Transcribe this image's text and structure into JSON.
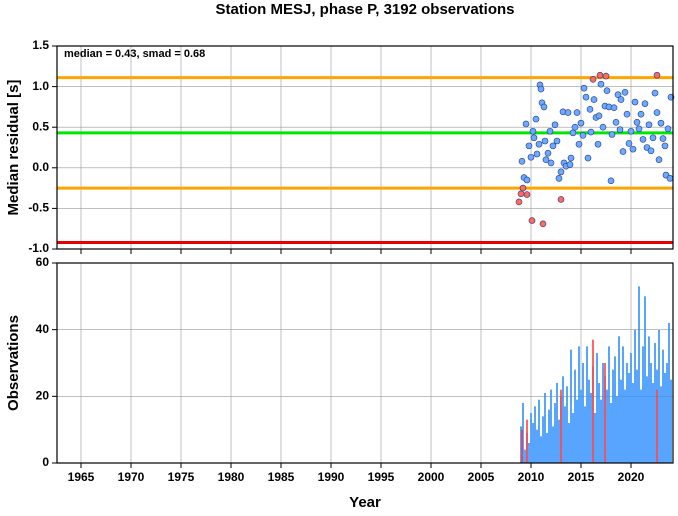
{
  "chart_data": [
    {
      "type": "scatter",
      "title": "Station MESJ, phase P, 3192 observations",
      "ylabel": "Median residual [s]",
      "annotation": "median = 0.43, smad = 0.68",
      "xlim": [
        1962.6,
        2024.2
      ],
      "xticks": [
        1965,
        1970,
        1975,
        1980,
        1985,
        1990,
        1995,
        2000,
        2005,
        2010,
        2015,
        2020
      ],
      "ylim": [
        -1.0,
        1.5
      ],
      "yticks": [
        {
          "value": -1.0,
          "label": "-1.0"
        },
        -0.5,
        {
          "value": 0.0,
          "label": "0.0"
        },
        0.5,
        {
          "value": 1.0,
          "label": "1.0"
        },
        1.5
      ],
      "grid": true,
      "hlines": [
        {
          "value": 1.11,
          "color": "#ffa500"
        },
        {
          "value": 0.43,
          "color": "#00e600"
        },
        {
          "value": -0.25,
          "color": "#ffa500"
        },
        {
          "value": -0.92,
          "color": "#e60000"
        }
      ],
      "series": [
        {
          "color": "#6fa8ff",
          "x": [
            2009.1,
            2009.3,
            2009.5,
            2009.6,
            2009.8,
            2010.0,
            2010.2,
            2010.3,
            2010.5,
            2010.6,
            2010.8,
            2010.9,
            2011.0,
            2011.1,
            2011.3,
            2011.4,
            2011.5,
            2011.7,
            2011.9,
            2012.0,
            2012.2,
            2012.4,
            2012.6,
            2012.8,
            2013.0,
            2013.2,
            2013.3,
            2013.5,
            2013.7,
            2013.9,
            2014.0,
            2014.2,
            2014.4,
            2014.6,
            2014.8,
            2015.0,
            2015.2,
            2015.3,
            2015.5,
            2015.7,
            2015.9,
            2016.0,
            2016.3,
            2016.5,
            2016.7,
            2016.8,
            2017.0,
            2017.2,
            2017.4,
            2017.6,
            2017.8,
            2018.0,
            2018.1,
            2018.3,
            2018.5,
            2018.7,
            2018.9,
            2019.0,
            2019.2,
            2019.4,
            2019.6,
            2019.8,
            2020.0,
            2020.2,
            2020.4,
            2020.6,
            2020.8,
            2021.0,
            2021.2,
            2021.4,
            2021.6,
            2021.8,
            2022.0,
            2022.2,
            2022.4,
            2022.6,
            2022.8,
            2023.0,
            2023.2,
            2023.4,
            2023.5,
            2023.7,
            2023.9,
            2024.0
          ],
          "values": [
            0.08,
            -0.12,
            0.54,
            -0.15,
            0.27,
            0.13,
            0.45,
            0.37,
            0.6,
            0.17,
            0.29,
            1.02,
            0.97,
            0.8,
            0.75,
            0.33,
            0.1,
            0.18,
            0.45,
            0.06,
            0.27,
            0.53,
            0.33,
            -0.13,
            -0.05,
            0.69,
            0.06,
            0.02,
            0.68,
            0.04,
            0.12,
            0.43,
            0.5,
            0.68,
            0.29,
            0.55,
            0.4,
            0.98,
            0.87,
            0.12,
            0.72,
            0.44,
            0.84,
            0.62,
            0.29,
            0.64,
            1.03,
            0.5,
            0.76,
            0.95,
            0.75,
            -0.16,
            0.41,
            0.74,
            0.56,
            0.9,
            0.47,
            0.84,
            0.2,
            0.93,
            0.66,
            0.3,
            0.45,
            0.23,
            0.81,
            0.56,
            0.48,
            0.66,
            0.35,
            0.79,
            0.25,
            0.53,
            0.21,
            0.37,
            0.92,
            0.68,
            0.1,
            0.55,
            0.36,
            0.27,
            -0.09,
            0.48,
            -0.13,
            0.87
          ]
        },
        {
          "color": "#ff6a5a",
          "x": [
            2008.8,
            2009.0,
            2009.2,
            2009.6,
            2010.1,
            2011.2,
            2013.0,
            2016.2,
            2016.9,
            2017.5,
            2022.6
          ],
          "values": [
            -0.42,
            -0.32,
            -0.25,
            -0.33,
            -0.65,
            -0.69,
            -0.39,
            1.09,
            1.14,
            1.13,
            1.14
          ]
        }
      ]
    },
    {
      "type": "bar",
      "ylabel": "Observations",
      "xlabel": "Year",
      "xlim": [
        1962.6,
        2024.2
      ],
      "xticks": [
        1965,
        1970,
        1975,
        1980,
        1985,
        1990,
        1995,
        2000,
        2005,
        2010,
        2015,
        2020
      ],
      "ylim": [
        0,
        60
      ],
      "yticks": [
        0,
        20,
        40,
        60
      ],
      "grid": true,
      "series": [
        {
          "color": "#2f8fff",
          "x": [
            2009.0,
            2009.2,
            2009.4,
            2009.6,
            2009.8,
            2010.0,
            2010.2,
            2010.4,
            2010.6,
            2010.8,
            2011.0,
            2011.2,
            2011.4,
            2011.6,
            2011.8,
            2012.0,
            2012.2,
            2012.4,
            2012.6,
            2012.8,
            2013.0,
            2013.2,
            2013.4,
            2013.6,
            2013.8,
            2014.0,
            2014.2,
            2014.4,
            2014.6,
            2014.8,
            2015.0,
            2015.2,
            2015.4,
            2015.6,
            2015.8,
            2016.0,
            2016.2,
            2016.4,
            2016.6,
            2016.8,
            2017.0,
            2017.2,
            2017.4,
            2017.6,
            2017.8,
            2018.0,
            2018.2,
            2018.4,
            2018.6,
            2018.8,
            2019.0,
            2019.2,
            2019.4,
            2019.6,
            2019.8,
            2020.0,
            2020.2,
            2020.4,
            2020.6,
            2020.8,
            2021.0,
            2021.2,
            2021.4,
            2021.6,
            2021.8,
            2022.0,
            2022.2,
            2022.4,
            2022.6,
            2022.8,
            2023.0,
            2023.2,
            2023.4,
            2023.6,
            2023.8,
            2024.0
          ],
          "values": [
            11,
            18,
            4,
            9,
            6,
            15,
            12,
            17,
            10,
            19,
            8,
            14,
            21,
            9,
            16,
            22,
            11,
            18,
            24,
            13,
            20,
            26,
            17,
            23,
            12,
            34,
            15,
            28,
            19,
            35,
            22,
            30,
            17,
            35,
            25,
            21,
            29,
            15,
            33,
            24,
            19,
            30,
            26,
            22,
            35,
            18,
            28,
            32,
            20,
            38,
            25,
            35,
            22,
            30,
            27,
            33,
            24,
            40,
            28,
            53,
            22,
            35,
            50,
            26,
            38,
            30,
            24,
            36,
            28,
            40,
            23,
            34,
            27,
            30,
            42,
            25
          ]
        },
        {
          "color": "#ff4040",
          "x": [
            2009.1,
            2009.6,
            2013.0,
            2016.2,
            2017.4,
            2022.6
          ],
          "values": [
            10,
            13,
            22,
            37,
            30,
            22
          ]
        }
      ]
    }
  ]
}
